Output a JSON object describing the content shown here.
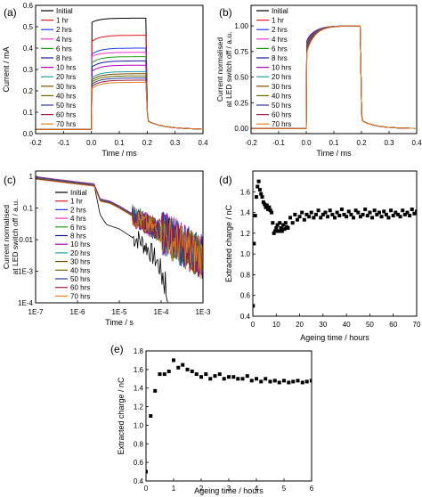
{
  "figure": {
    "aria_label": ""
  },
  "legend_labels": [
    "Initial",
    "1 hr",
    "2 hrs",
    "4 hrs",
    "6 hrs",
    "8 hrs",
    "10 hrs",
    "20 hrs",
    "30 hrs",
    "40 hrs",
    "50 hrs",
    "60 hrs",
    "70 hrs"
  ],
  "colors": {
    "Initial": "#000000",
    "1 hr": "#e41a1c",
    "2 hrs": "#1f3cff",
    "4 hrs": "#ff33cc",
    "6 hrs": "#1a9e1a",
    "8 hrs": "#1a1aa0",
    "10 hrs": "#b000b0",
    "20 hrs": "#1fa0a0",
    "30 hrs": "#7b4a00",
    "40 hrs": "#6b6b00",
    "50 hrs": "#2a3a9a",
    "60 hrs": "#a01a40",
    "70 hrs": "#e08020"
  },
  "chart_data": [
    {
      "panel": "(a)",
      "type": "line",
      "xlabel": "Time / ms",
      "ylabel": "Current / mA",
      "xlim": [
        -0.2,
        0.4
      ],
      "ylim": [
        0,
        0.6
      ],
      "xticks": [
        -0.2,
        -0.1,
        0.0,
        0.1,
        0.2,
        0.3,
        0.4
      ],
      "xtick_labels": [
        "-0.2",
        "-0.1",
        "0.0",
        "0.1",
        "0.2",
        "0.3",
        "0.4"
      ],
      "yticks": [
        0,
        0.1,
        0.2,
        0.3,
        0.4,
        0.5,
        0.6
      ],
      "ytick_labels": [
        "0.0",
        "0.1",
        "0.2",
        "0.3",
        "0.4",
        "0.5",
        "0.6"
      ],
      "legend_position": "top-left",
      "pulse": {
        "on": 0.0,
        "off": 0.2,
        "baseline": 0.02,
        "decay_to": 0.06
      },
      "series": [
        {
          "name": "Initial",
          "start": 0.52,
          "plateau": 0.54
        },
        {
          "name": "1 hr",
          "start": 0.43,
          "plateau": 0.46
        },
        {
          "name": "2 hrs",
          "start": 0.37,
          "plateau": 0.4
        },
        {
          "name": "4 hrs",
          "start": 0.36,
          "plateau": 0.38
        },
        {
          "name": "6 hrs",
          "start": 0.33,
          "plateau": 0.36
        },
        {
          "name": "8 hrs",
          "start": 0.31,
          "plateau": 0.34
        },
        {
          "name": "10 hrs",
          "start": 0.29,
          "plateau": 0.32
        },
        {
          "name": "20 hrs",
          "start": 0.26,
          "plateau": 0.29
        },
        {
          "name": "30 hrs",
          "start": 0.25,
          "plateau": 0.28
        },
        {
          "name": "40 hrs",
          "start": 0.24,
          "plateau": 0.27
        },
        {
          "name": "50 hrs",
          "start": 0.23,
          "plateau": 0.26
        },
        {
          "name": "60 hrs",
          "start": 0.22,
          "plateau": 0.25
        },
        {
          "name": "70 hrs",
          "start": 0.21,
          "plateau": 0.24
        }
      ]
    },
    {
      "panel": "(b)",
      "type": "line",
      "xlabel": "Time / ms",
      "ylabel": "Current normalised at LED switch off / a.u.",
      "ylabel_lines": [
        "Current normalised",
        "at LED switch off / a.u."
      ],
      "xlim": [
        -0.2,
        0.4
      ],
      "ylim": [
        -0.05,
        1.2
      ],
      "xticks": [
        -0.2,
        -0.1,
        0.0,
        0.1,
        0.2,
        0.3,
        0.4
      ],
      "xtick_labels": [
        "-0.2",
        "-0.1",
        "0.0",
        "0.1",
        "0.2",
        "0.3",
        "0.4"
      ],
      "yticks": [
        0.0,
        0.25,
        0.5,
        0.75,
        1.0
      ],
      "ytick_labels": [
        "0.00",
        "0.25",
        "0.50",
        "0.75",
        "1.00"
      ],
      "legend_position": "top-right",
      "pulse": {
        "on": 0.0,
        "off": 0.2,
        "plateau": 1.0,
        "start": 0.85,
        "decay_to": 0.08
      },
      "series_names": [
        "Initial",
        "1 hr",
        "2 hrs",
        "4 hrs",
        "6 hrs",
        "8 hrs",
        "10 hrs",
        "20 hrs",
        "30 hrs",
        "40 hrs",
        "50 hrs",
        "60 hrs",
        "70 hrs"
      ]
    },
    {
      "panel": "(c)",
      "type": "line",
      "xlabel": "Time / s",
      "ylabel": "Current normalised at LED switch off / a.u.",
      "ylabel_lines": [
        "Current normalised",
        "at LED switch off / a.u."
      ],
      "xscale": "log",
      "yscale": "log",
      "xlim": [
        1e-07,
        0.001
      ],
      "ylim": [
        0.0001,
        1.5
      ],
      "xticks": [
        1e-07,
        1e-06,
        1e-05,
        0.0001,
        0.001
      ],
      "xtick_labels": [
        "1E-7",
        "1E-6",
        "1E-5",
        "1E-4",
        "1E-3"
      ],
      "yticks": [
        1,
        0.1,
        0.01,
        0.001,
        0.0001
      ],
      "ytick_labels": [
        "1",
        "0.1",
        "0.01",
        "1E-3",
        "1E-4"
      ],
      "legend_position": "top-right",
      "decay": {
        "initial": [
          [
            1e-07,
            1.0
          ],
          [
            2.5e-06,
            0.55
          ],
          [
            3.5e-06,
            0.06
          ],
          [
            5e-06,
            0.03
          ],
          [
            1e-05,
            0.022
          ],
          [
            2e-05,
            0.012
          ],
          [
            3e-05,
            0.01
          ],
          [
            5e-05,
            0.005
          ],
          [
            8e-05,
            0.002
          ],
          [
            0.00012,
            0.0006
          ],
          [
            0.00015,
            0.0001
          ]
        ],
        "aged": [
          [
            1e-07,
            1.0
          ],
          [
            2.5e-06,
            0.6
          ],
          [
            3.5e-06,
            0.2
          ],
          [
            6e-06,
            0.17
          ],
          [
            1e-05,
            0.12
          ],
          [
            3e-05,
            0.05
          ],
          [
            0.0001,
            0.02
          ],
          [
            0.0003,
            0.008
          ],
          [
            0.001,
            0.003
          ]
        ]
      },
      "series_names": [
        "Initial",
        "1 hr",
        "2 hrs",
        "4 hrs",
        "6 hrs",
        "8 hrs",
        "10 hrs",
        "20 hrs",
        "30 hrs",
        "40 hrs",
        "50 hrs",
        "60 hrs",
        "70 hrs"
      ]
    },
    {
      "panel": "(d)",
      "type": "scatter",
      "xlabel": "Ageing time / hours",
      "ylabel": "Extracted charge / nC",
      "xlim": [
        0,
        70
      ],
      "ylim": [
        0.4,
        1.8
      ],
      "xticks": [
        0,
        10,
        20,
        30,
        40,
        50,
        60,
        70
      ],
      "xtick_labels": [
        "0",
        "10",
        "20",
        "30",
        "40",
        "50",
        "60",
        "70"
      ],
      "yticks": [
        0.4,
        0.6,
        0.8,
        1.0,
        1.2,
        1.4,
        1.6
      ],
      "ytick_labels": [
        "0.4",
        "0.6",
        "0.8",
        "1.0",
        "1.2",
        "1.4",
        "1.6"
      ],
      "x": [
        0.1,
        0.5,
        1.0,
        1.5,
        2,
        2.5,
        3,
        3.5,
        4,
        4.5,
        5,
        5.5,
        6,
        6.5,
        7,
        7.5,
        8,
        8.5,
        9,
        9.5,
        10,
        10.5,
        11,
        11.5,
        12,
        12.5,
        13,
        13.5,
        14,
        14.5,
        15,
        16,
        17,
        18,
        19,
        20,
        21,
        22,
        23,
        24,
        25,
        26,
        27,
        28,
        29,
        30,
        31,
        32,
        33,
        34,
        35,
        36,
        37,
        38,
        39,
        40,
        41,
        42,
        43,
        44,
        45,
        46,
        47,
        48,
        49,
        50,
        51,
        52,
        53,
        54,
        55,
        56,
        57,
        58,
        59,
        60,
        61,
        62,
        63,
        64,
        65,
        66,
        67,
        68,
        69,
        70
      ],
      "y": [
        0.5,
        1.1,
        1.37,
        1.55,
        1.65,
        1.7,
        1.62,
        1.58,
        1.55,
        1.5,
        1.48,
        1.45,
        1.47,
        1.43,
        1.45,
        1.42,
        1.4,
        1.3,
        1.2,
        1.22,
        1.25,
        1.28,
        1.22,
        1.3,
        1.25,
        1.22,
        1.28,
        1.24,
        1.3,
        1.26,
        1.25,
        1.35,
        1.3,
        1.38,
        1.33,
        1.36,
        1.4,
        1.33,
        1.38,
        1.36,
        1.4,
        1.35,
        1.38,
        1.42,
        1.35,
        1.38,
        1.4,
        1.36,
        1.42,
        1.38,
        1.35,
        1.4,
        1.37,
        1.43,
        1.38,
        1.36,
        1.41,
        1.38,
        1.35,
        1.42,
        1.4,
        1.36,
        1.38,
        1.43,
        1.37,
        1.4,
        1.35,
        1.42,
        1.38,
        1.4,
        1.36,
        1.41,
        1.38,
        1.35,
        1.42,
        1.37,
        1.4,
        1.38,
        1.36,
        1.42,
        1.38,
        1.4,
        1.37,
        1.43,
        1.39,
        1.41
      ]
    },
    {
      "panel": "(e)",
      "type": "scatter",
      "xlabel": "Ageing time / hours",
      "ylabel": "Extracted charge / nC",
      "xlim": [
        0,
        6
      ],
      "ylim": [
        0.4,
        1.8
      ],
      "xticks": [
        0,
        1,
        2,
        3,
        4,
        5,
        6
      ],
      "xtick_labels": [
        "0",
        "1",
        "2",
        "3",
        "4",
        "5",
        "6"
      ],
      "yticks": [
        0.4,
        0.6,
        0.8,
        1.0,
        1.2,
        1.4,
        1.6,
        1.8
      ],
      "ytick_labels": [
        "0.4",
        "0.6",
        "0.8",
        "1.0",
        "1.2",
        "1.4",
        "1.6",
        "1.8"
      ],
      "x": [
        0.0,
        0.17,
        0.33,
        0.5,
        0.67,
        0.83,
        1.0,
        1.17,
        1.33,
        1.5,
        1.67,
        1.83,
        2.0,
        2.17,
        2.33,
        2.5,
        2.67,
        2.83,
        3.0,
        3.17,
        3.33,
        3.5,
        3.67,
        3.83,
        4.0,
        4.17,
        4.33,
        4.5,
        4.67,
        4.83,
        5.0,
        5.17,
        5.33,
        5.5,
        5.67,
        5.83,
        6.0
      ],
      "y": [
        0.5,
        1.1,
        1.37,
        1.55,
        1.55,
        1.58,
        1.7,
        1.62,
        1.65,
        1.6,
        1.58,
        1.55,
        1.52,
        1.55,
        1.5,
        1.53,
        1.55,
        1.5,
        1.52,
        1.52,
        1.5,
        1.5,
        1.53,
        1.48,
        1.5,
        1.47,
        1.5,
        1.47,
        1.48,
        1.46,
        1.48,
        1.46,
        1.47,
        1.48,
        1.46,
        1.47,
        1.48
      ]
    }
  ]
}
